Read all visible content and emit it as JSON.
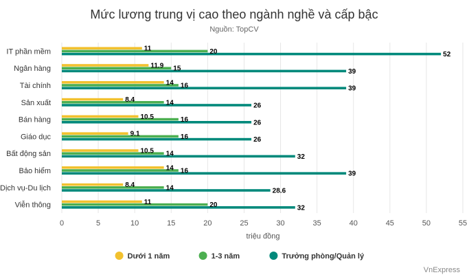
{
  "chart_data": {
    "type": "bar",
    "orientation": "horizontal",
    "title": "Mức lương trung vị cao theo ngành nghề và cấp bậc",
    "subtitle": "Nguồn: TopCV",
    "xlabel": "triệu đồng",
    "xlim": [
      0,
      55
    ],
    "xticks": [
      0,
      5,
      10,
      15,
      20,
      25,
      30,
      35,
      40,
      45,
      50,
      55
    ],
    "grid": true,
    "legend_position": "bottom",
    "categories": [
      "IT phần mềm",
      "Ngân hàng",
      "Tài chính",
      "Sản xuất",
      "Bán hàng",
      "Giáo dục",
      "Bất động sản",
      "Bảo hiểm",
      "Dịch vụ-Du lịch",
      "Viễn thông"
    ],
    "series": [
      {
        "name": "Dưới 1 năm",
        "color": "#f2c12e",
        "values": [
          11,
          11.9,
          14,
          8.4,
          10.5,
          9.1,
          10.5,
          14,
          8.4,
          11
        ]
      },
      {
        "name": "1-3 năm",
        "color": "#4caf50",
        "values": [
          20,
          15,
          16,
          14,
          16,
          16,
          14,
          16,
          14,
          20
        ]
      },
      {
        "name": "Trưởng phòng/Quản lý",
        "color": "#00897b",
        "values": [
          52,
          39,
          39,
          26,
          26,
          26,
          32,
          39,
          28.6,
          32
        ]
      }
    ],
    "credit": "VnExpress"
  }
}
